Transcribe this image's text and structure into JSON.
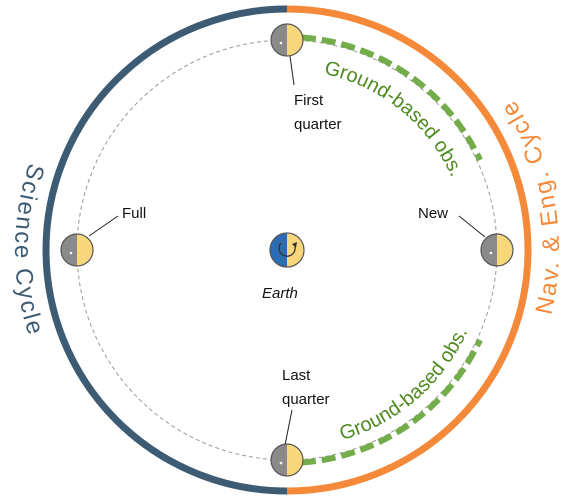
{
  "labels": {
    "science_cycle": "Science Cycle",
    "nav_cycle": "Nav. & Eng. Cycle",
    "ground_top": "Ground-based obs.",
    "ground_bottom": "Ground-based obs.",
    "earth": "Earth",
    "full": "Full",
    "new": "New",
    "first_quarter": [
      "First",
      "quarter"
    ],
    "last_quarter": [
      "Last",
      "quarter"
    ]
  }
}
